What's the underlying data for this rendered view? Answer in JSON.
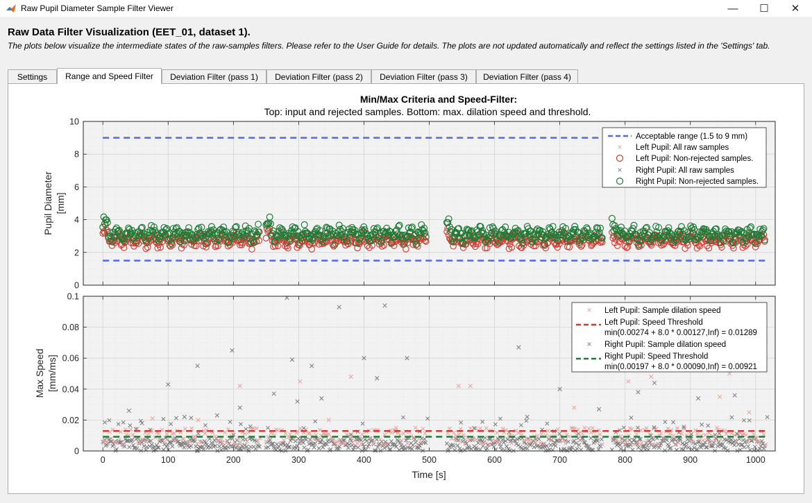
{
  "window": {
    "title": "Raw Pupil Diameter Sample Filter Viewer",
    "minimize_glyph": "—",
    "maximize_glyph": "☐",
    "close_glyph": "✕",
    "icon": "matlab-icon"
  },
  "page": {
    "heading": "Raw Data Filter Visualization (EET_01, dataset 1).",
    "description": "The plots below visualize the intermediate states of the raw-samples filters. Please refer to the User Guide for details. The plots are not updated automatically and reflect the settings listed in the 'Settings' tab."
  },
  "tabs": [
    {
      "label": "Settings",
      "active": false
    },
    {
      "label": "Range and Speed Filter",
      "active": true
    },
    {
      "label": "Deviation Filter (pass 1)",
      "active": false
    },
    {
      "label": "Deviation Filter (pass 2)",
      "active": false
    },
    {
      "label": "Deviation Filter (pass 3)",
      "active": false
    },
    {
      "label": "Deviation Filter (pass 4)",
      "active": false
    }
  ],
  "colors": {
    "range_line": "#4f6ae6",
    "left_raw": "#e8a0a0",
    "left_valid": "#d2392e",
    "right_raw": "#7a7a7a",
    "right_valid": "#1e7a35",
    "axes_bg": "#f2f2f2",
    "grid": "#d4d4d4"
  },
  "chart_data": [
    {
      "type": "scatter",
      "title": "Min/Max Criteria and Speed-Filter:",
      "subtitle": "Top: input and rejected samples. Bottom: max. dilation speed and threshold.",
      "xlabel": "Time [s]",
      "ylabel_line1": "Pupil Diameter",
      "ylabel_line2": "[mm]",
      "xlim": [
        -30,
        1030
      ],
      "ylim": [
        0,
        10
      ],
      "xticks": [
        0,
        100,
        200,
        300,
        400,
        500,
        600,
        700,
        800,
        900,
        1000
      ],
      "yticks": [
        0,
        2,
        4,
        6,
        8,
        10
      ],
      "ytick_labels": [
        "0",
        "2",
        "4",
        "6",
        "8",
        "10"
      ],
      "grid": true,
      "legend_position": "top-right",
      "recording_segments": [
        [
          0,
          240
        ],
        [
          250,
          495
        ],
        [
          527,
          765
        ],
        [
          780,
          1015
        ]
      ],
      "series": [
        {
          "name": "Acceptable range (1.5 to 9 mm)",
          "kind": "hlines",
          "y": [
            1.5,
            9
          ],
          "x": [
            0,
            1020
          ]
        },
        {
          "name": "Left Pupil: All raw samples",
          "kind": "x-marker",
          "level": 2.75
        },
        {
          "name": "Left Pupil: Non-rejected samples.",
          "kind": "circle",
          "level": 2.75
        },
        {
          "name": "Right Pupil: All raw samples",
          "kind": "x-marker",
          "level": 3.1
        },
        {
          "name": "Right Pupil: Non-rejected samples.",
          "kind": "circle",
          "level": 3.1
        }
      ]
    },
    {
      "type": "scatter",
      "xlabel": "Time [s]",
      "ylabel_line1": "Max Speed",
      "ylabel_line2": "[mm/ms]",
      "xlim": [
        -30,
        1030
      ],
      "ylim": [
        0,
        0.1
      ],
      "xticks": [
        0,
        100,
        200,
        300,
        400,
        500,
        600,
        700,
        800,
        900,
        1000
      ],
      "yticks": [
        0,
        0.02,
        0.04,
        0.06,
        0.08,
        0.1
      ],
      "ytick_labels": [
        "0",
        "0.02",
        "0.04",
        "0.06",
        "0.08",
        "0.1"
      ],
      "grid": true,
      "legend_position": "top-right",
      "series": [
        {
          "name": "Left Pupil: Sample dilation speed",
          "kind": "x-marker"
        },
        {
          "name": "Left Pupil: Speed Threshold",
          "name_line2": "min(0.00274 + 8.0 * 0.00127,Inf) = 0.01289",
          "kind": "hline",
          "y": 0.01289
        },
        {
          "name": "Right Pupil: Sample dilation speed",
          "kind": "x-marker"
        },
        {
          "name": "Right Pupil: Speed Threshold",
          "name_line2": "min(0.00197 + 8.0 * 0.00090,Inf) = 0.00921",
          "kind": "hline",
          "y": 0.00921
        }
      ],
      "right_outliers": [
        [
          40,
          0.026
        ],
        [
          60,
          0.018
        ],
        [
          100,
          0.043
        ],
        [
          125,
          0.022
        ],
        [
          145,
          0.055
        ],
        [
          175,
          0.023
        ],
        [
          198,
          0.065
        ],
        [
          210,
          0.028
        ],
        [
          262,
          0.037
        ],
        [
          282,
          0.099
        ],
        [
          290,
          0.059
        ],
        [
          298,
          0.032
        ],
        [
          320,
          0.055
        ],
        [
          335,
          0.034
        ],
        [
          362,
          0.093
        ],
        [
          400,
          0.06
        ],
        [
          420,
          0.047
        ],
        [
          432,
          0.094
        ],
        [
          466,
          0.06
        ],
        [
          637,
          0.067
        ],
        [
          650,
          0.022
        ],
        [
          700,
          0.04
        ],
        [
          760,
          0.027
        ],
        [
          820,
          0.038
        ],
        [
          845,
          0.044
        ],
        [
          912,
          0.034
        ],
        [
          968,
          0.036
        ]
      ],
      "left_outliers": [
        [
          76,
          0.021
        ],
        [
          146,
          0.02
        ],
        [
          210,
          0.042
        ],
        [
          302,
          0.045
        ],
        [
          346,
          0.02
        ],
        [
          380,
          0.048
        ],
        [
          545,
          0.042
        ],
        [
          563,
          0.042
        ],
        [
          722,
          0.028
        ],
        [
          805,
          0.045
        ],
        [
          840,
          0.048
        ],
        [
          945,
          0.035
        ],
        [
          960,
          0.05
        ],
        [
          990,
          0.025
        ]
      ]
    }
  ]
}
